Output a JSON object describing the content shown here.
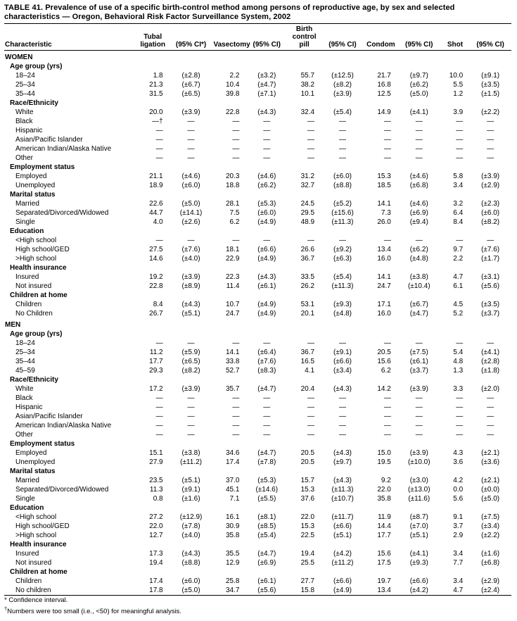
{
  "title": "TABLE 41. Prevalence of use of a specific birth-control method among persons of reproductive age, by sex and selected characteristics — Oregon, Behavioral Risk Factor Surveillance System, 2002",
  "table": {
    "columns": [
      {
        "label": "Characteristic"
      },
      {
        "label": "Tubal\nligation"
      },
      {
        "label": "(95% CI*)"
      },
      {
        "label": "Vasectomy"
      },
      {
        "label": "(95% CI)"
      },
      {
        "label": "Birth\ncontrol\npill"
      },
      {
        "label": "(95% CI)"
      },
      {
        "label": "Condom"
      },
      {
        "label": "(95% CI)"
      },
      {
        "label": "Shot"
      },
      {
        "label": "(95% CI)"
      }
    ],
    "groups": [
      {
        "name": "WOMEN",
        "sections": [
          {
            "name": "Age group (yrs)",
            "rows": [
              {
                "label": "18–24",
                "values": [
                  "1.8",
                  "(±2.8)",
                  "2.2",
                  "(±3.2)",
                  "55.7",
                  "(±12.5)",
                  "21.7",
                  "(±9.7)",
                  "10.0",
                  "(±9.1)"
                ]
              },
              {
                "label": "25–34",
                "values": [
                  "21.3",
                  "(±6.7)",
                  "10.4",
                  "(±4.7)",
                  "38.2",
                  "(±8.2)",
                  "16.8",
                  "(±6.2)",
                  "5.5",
                  "(±3.5)"
                ]
              },
              {
                "label": "35–44",
                "values": [
                  "31.5",
                  "(±6.5)",
                  "39.8",
                  "(±7.1)",
                  "10.1",
                  "(±3.9)",
                  "12.5",
                  "(±5.0)",
                  "1.2",
                  "(±1.5)"
                ]
              }
            ]
          },
          {
            "name": "Race/Ethnicity",
            "rows": [
              {
                "label": "White",
                "values": [
                  "20.0",
                  "(±3.9)",
                  "22.8",
                  "(±4.3)",
                  "32.4",
                  "(±5.4)",
                  "14.9",
                  "(±4.1)",
                  "3.9",
                  "(±2.2)"
                ]
              },
              {
                "label": "Black",
                "values": [
                  "—†",
                  "—",
                  "—",
                  "—",
                  "—",
                  "—",
                  "—",
                  "—",
                  "—",
                  "—"
                ]
              },
              {
                "label": "Hispanic",
                "values": [
                  "—",
                  "—",
                  "—",
                  "—",
                  "—",
                  "—",
                  "—",
                  "—",
                  "—",
                  "—"
                ]
              },
              {
                "label": "Asian/Pacific Islander",
                "values": [
                  "—",
                  "—",
                  "—",
                  "—",
                  "—",
                  "—",
                  "—",
                  "—",
                  "—",
                  "—"
                ]
              },
              {
                "label": "American Indian/Alaska Native",
                "values": [
                  "—",
                  "—",
                  "—",
                  "—",
                  "—",
                  "—",
                  "—",
                  "—",
                  "—",
                  "—"
                ]
              },
              {
                "label": "Other",
                "values": [
                  "—",
                  "—",
                  "—",
                  "—",
                  "—",
                  "—",
                  "—",
                  "—",
                  "—",
                  "—"
                ]
              }
            ]
          },
          {
            "name": "Employment status",
            "rows": [
              {
                "label": "Employed",
                "values": [
                  "21.1",
                  "(±4.6)",
                  "20.3",
                  "(±4.6)",
                  "31.2",
                  "(±6.0)",
                  "15.3",
                  "(±4.6)",
                  "5.8",
                  "(±3.9)"
                ]
              },
              {
                "label": "Unemployed",
                "values": [
                  "18.9",
                  "(±6.0)",
                  "18.8",
                  "(±6.2)",
                  "32.7",
                  "(±8.8)",
                  "18.5",
                  "(±6.8)",
                  "3.4",
                  "(±2.9)"
                ]
              }
            ]
          },
          {
            "name": "Marital status",
            "rows": [
              {
                "label": "Married",
                "values": [
                  "22.6",
                  "(±5.0)",
                  "28.1",
                  "(±5.3)",
                  "24.5",
                  "(±5.2)",
                  "14.1",
                  "(±4.6)",
                  "3.2",
                  "(±2.3)"
                ]
              },
              {
                "label": "Separated/Divorced/Widowed",
                "values": [
                  "44.7",
                  "(±14.1)",
                  "7.5",
                  "(±6.0)",
                  "29.5",
                  "(±15.6)",
                  "7.3",
                  "(±6.9)",
                  "6.4",
                  "(±6.0)"
                ]
              },
              {
                "label": "Single",
                "values": [
                  "4.0",
                  "(±2.6)",
                  "6.2",
                  "(±4.9)",
                  "48.9",
                  "(±11.3)",
                  "26.0",
                  "(±9.4)",
                  "8.4",
                  "(±8.2)"
                ]
              }
            ]
          },
          {
            "name": "Education",
            "rows": [
              {
                "label": "<High school",
                "values": [
                  "—",
                  "—",
                  "—",
                  "—",
                  "—",
                  "—",
                  "—",
                  "—",
                  "—",
                  "—"
                ]
              },
              {
                "label": "High school/GED",
                "values": [
                  "27.5",
                  "(±7.6)",
                  "18.1",
                  "(±6.6)",
                  "26.6",
                  "(±9.2)",
                  "13.4",
                  "(±6.2)",
                  "9.7",
                  "(±7.6)"
                ]
              },
              {
                "label": ">High school",
                "values": [
                  "14.6",
                  "(±4.0)",
                  "22.9",
                  "(±4.9)",
                  "36.7",
                  "(±6.3)",
                  "16.0",
                  "(±4.8)",
                  "2.2",
                  "(±1.7)"
                ]
              }
            ]
          },
          {
            "name": "Health insurance",
            "rows": [
              {
                "label": "Insured",
                "values": [
                  "19.2",
                  "(±3.9)",
                  "22.3",
                  "(±4.3)",
                  "33.5",
                  "(±5.4)",
                  "14.1",
                  "(±3.8)",
                  "4.7",
                  "(±3.1)"
                ]
              },
              {
                "label": "Not insured",
                "values": [
                  "22.8",
                  "(±8.9)",
                  "11.4",
                  "(±6.1)",
                  "26.2",
                  "(±11.3)",
                  "24.7",
                  "(±10.4)",
                  "6.1",
                  "(±5.6)"
                ]
              }
            ]
          },
          {
            "name": "Children at home",
            "rows": [
              {
                "label": "Children",
                "values": [
                  "8.4",
                  "(±4.3)",
                  "10.7",
                  "(±4.9)",
                  "53.1",
                  "(±9.3)",
                  "17.1",
                  "(±6.7)",
                  "4.5",
                  "(±3.5)"
                ]
              },
              {
                "label": "No Children",
                "values": [
                  "26.7",
                  "(±5.1)",
                  "24.7",
                  "(±4.9)",
                  "20.1",
                  "(±4.8)",
                  "16.0",
                  "(±4.7)",
                  "5.2",
                  "(±3.7)"
                ]
              }
            ]
          }
        ]
      },
      {
        "name": "MEN",
        "sections": [
          {
            "name": "Age group (yrs)",
            "rows": [
              {
                "label": "18–24",
                "values": [
                  "—",
                  "—",
                  "—",
                  "—",
                  "—",
                  "—",
                  "—",
                  "—",
                  "—",
                  "—"
                ]
              },
              {
                "label": "25–34",
                "values": [
                  "11.2",
                  "(±5.9)",
                  "14.1",
                  "(±6.4)",
                  "36.7",
                  "(±9.1)",
                  "20.5",
                  "(±7.5)",
                  "5.4",
                  "(±4.1)"
                ]
              },
              {
                "label": "35–44",
                "values": [
                  "17.7",
                  "(±6.5)",
                  "33.8",
                  "(±7.6)",
                  "16.5",
                  "(±6.6)",
                  "15.6",
                  "(±6.1)",
                  "4.8",
                  "(±2.8)"
                ]
              },
              {
                "label": "45–59",
                "values": [
                  "29.3",
                  "(±8.2)",
                  "52.7",
                  "(±8.3)",
                  "4.1",
                  "(±3.4)",
                  "6.2",
                  "(±3.7)",
                  "1.3",
                  "(±1.8)"
                ]
              }
            ]
          },
          {
            "name": "Race/Ethnicity",
            "rows": [
              {
                "label": "White",
                "values": [
                  "17.2",
                  "(±3.9)",
                  "35.7",
                  "(±4.7)",
                  "20.4",
                  "(±4.3)",
                  "14.2",
                  "(±3.9)",
                  "3.3",
                  "(±2.0)"
                ]
              },
              {
                "label": "Black",
                "values": [
                  "—",
                  "—",
                  "—",
                  "—",
                  "—",
                  "—",
                  "—",
                  "—",
                  "—",
                  "—"
                ]
              },
              {
                "label": "Hispanic",
                "values": [
                  "—",
                  "—",
                  "—",
                  "—",
                  "—",
                  "—",
                  "—",
                  "—",
                  "—",
                  "—"
                ]
              },
              {
                "label": "Asian/Pacific Islander",
                "values": [
                  "—",
                  "—",
                  "—",
                  "—",
                  "—",
                  "—",
                  "—",
                  "—",
                  "—",
                  "—"
                ]
              },
              {
                "label": "American Indian/Alaska Native",
                "values": [
                  "—",
                  "—",
                  "—",
                  "—",
                  "—",
                  "—",
                  "—",
                  "—",
                  "—",
                  "—"
                ]
              },
              {
                "label": "Other",
                "values": [
                  "—",
                  "—",
                  "—",
                  "—",
                  "—",
                  "—",
                  "—",
                  "—",
                  "—",
                  "—"
                ]
              }
            ]
          },
          {
            "name": "Employment status",
            "rows": [
              {
                "label": "Employed",
                "values": [
                  "15.1",
                  "(±3.8)",
                  "34.6",
                  "(±4.7)",
                  "20.5",
                  "(±4.3)",
                  "15.0",
                  "(±3.9)",
                  "4.3",
                  "(±2.1)"
                ]
              },
              {
                "label": "Unemployed",
                "values": [
                  "27.9",
                  "(±11.2)",
                  "17.4",
                  "(±7.8)",
                  "20.5",
                  "(±9.7)",
                  "19.5",
                  "(±10.0)",
                  "3.6",
                  "(±3.6)"
                ]
              }
            ]
          },
          {
            "name": "Marital status",
            "rows": [
              {
                "label": "Married",
                "values": [
                  "23.5",
                  "(±5.1)",
                  "37.0",
                  "(±5.3)",
                  "15.7",
                  "(±4.3)",
                  "9.2",
                  "(±3.0)",
                  "4.2",
                  "(±2.1)"
                ]
              },
              {
                "label": "Separated/Divorced/Widowed",
                "values": [
                  "11.3",
                  "(±9.1)",
                  "45.1",
                  "(±14.6)",
                  "15.3",
                  "(±11.3)",
                  "22.0",
                  "(±13.0)",
                  "0.0",
                  "(±0.0)"
                ]
              },
              {
                "label": "Single",
                "values": [
                  "0.8",
                  "(±1.6)",
                  "7.1",
                  "(±5.5)",
                  "37.6",
                  "(±10.7)",
                  "35.8",
                  "(±11.6)",
                  "5.6",
                  "(±5.0)"
                ]
              }
            ]
          },
          {
            "name": "Education",
            "rows": [
              {
                "label": "<High school",
                "values": [
                  "27.2",
                  "(±12.9)",
                  "16.1",
                  "(±8.1)",
                  "22.0",
                  "(±11.7)",
                  "11.9",
                  "(±8.7)",
                  "9.1",
                  "(±7.5)"
                ]
              },
              {
                "label": "High school/GED",
                "values": [
                  "22.0",
                  "(±7.8)",
                  "30.9",
                  "(±8.5)",
                  "15.3",
                  "(±6.6)",
                  "14.4",
                  "(±7.0)",
                  "3.7",
                  "(±3.4)"
                ]
              },
              {
                "label": ">High school",
                "values": [
                  "12.7",
                  "(±4.0)",
                  "35.8",
                  "(±5.4)",
                  "22.5",
                  "(±5.1)",
                  "17.7",
                  "(±5.1)",
                  "2.9",
                  "(±2.2)"
                ]
              }
            ]
          },
          {
            "name": "Health insurance",
            "rows": [
              {
                "label": "Insured",
                "values": [
                  "17.3",
                  "(±4.3)",
                  "35.5",
                  "(±4.7)",
                  "19.4",
                  "(±4.2)",
                  "15.6",
                  "(±4.1)",
                  "3.4",
                  "(±1.6)"
                ]
              },
              {
                "label": "Not insured",
                "values": [
                  "19.4",
                  "(±8.8)",
                  "12.9",
                  "(±6.9)",
                  "25.5",
                  "(±11.2)",
                  "17.5",
                  "(±9.3)",
                  "7.7",
                  "(±6.8)"
                ]
              }
            ]
          },
          {
            "name": "Children at home",
            "rows": [
              {
                "label": "Children",
                "values": [
                  "17.4",
                  "(±6.0)",
                  "25.8",
                  "(±6.1)",
                  "27.7",
                  "(±6.6)",
                  "19.7",
                  "(±6.6)",
                  "3.4",
                  "(±2.9)"
                ]
              },
              {
                "label": "No children",
                "values": [
                  "17.8",
                  "(±5.0)",
                  "34.7",
                  "(±5.6)",
                  "15.8",
                  "(±4.9)",
                  "13.4",
                  "(±4.2)",
                  "4.7",
                  "(±2.4)"
                ]
              }
            ]
          }
        ]
      }
    ]
  },
  "footnotes": [
    {
      "marker": "*",
      "text": "Confidence interval."
    },
    {
      "marker": "†",
      "text": "Numbers were too small (i.e., <50) for meaningful analysis."
    }
  ]
}
